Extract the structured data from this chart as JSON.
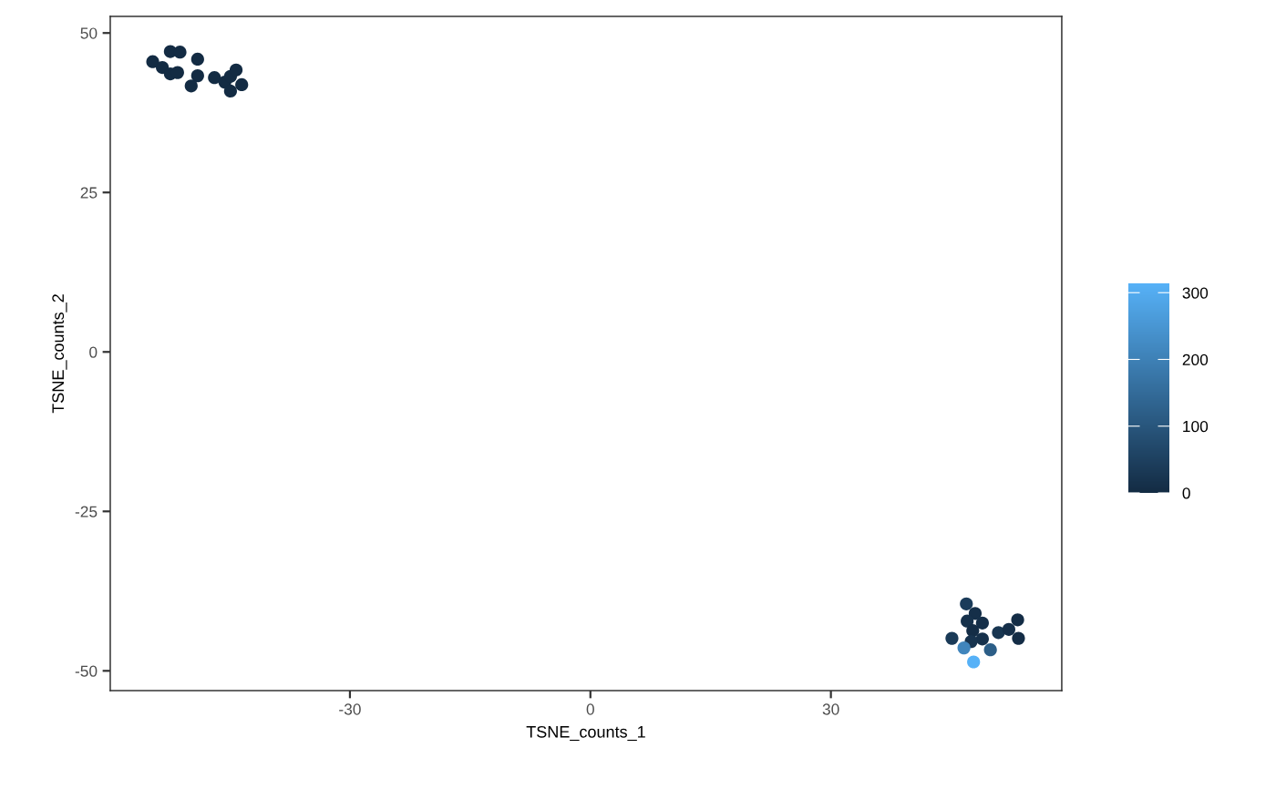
{
  "chart_data": {
    "type": "scatter",
    "xlabel": "TSNE_counts_1",
    "ylabel": "TSNE_counts_2",
    "x": [
      -54.6,
      -53.4,
      -52.4,
      -51.2,
      -52.4,
      -51.5,
      -49.0,
      -49.0,
      -49.8,
      -46.9,
      -45.6,
      -44.9,
      -44.2,
      -44.9,
      -43.5,
      46.9,
      48.0,
      47.0,
      48.9,
      47.7,
      50.9,
      52.2,
      53.3,
      53.4,
      45.1,
      48.9,
      47.5,
      46.6,
      49.9,
      47.8
    ],
    "values": [
      45.5,
      44.6,
      47.1,
      47.0,
      43.6,
      43.8,
      45.9,
      43.3,
      41.7,
      43.0,
      42.3,
      43.2,
      44.2,
      40.9,
      41.9,
      -39.5,
      -41.0,
      -42.2,
      -42.5,
      -43.7,
      -44.0,
      -43.5,
      -42.0,
      -44.9,
      -44.9,
      -45.0,
      -45.4,
      -46.4,
      -46.7,
      -48.6
    ],
    "cvalues": [
      0,
      0,
      0,
      0,
      0,
      0,
      0,
      0,
      0,
      0,
      0,
      0,
      0,
      0,
      0,
      40,
      10,
      15,
      10,
      5,
      25,
      10,
      5,
      5,
      35,
      15,
      20,
      210,
      120,
      314
    ],
    "clim": [
      0,
      314
    ],
    "cticks": [
      0,
      100,
      200,
      300
    ],
    "xlim": [
      -59.9,
      58.8
    ],
    "ylim": [
      -53.1,
      52.6
    ],
    "xticks": [
      -30,
      0,
      30
    ],
    "yticks": [
      -50,
      -25,
      0,
      25,
      50
    ],
    "marker": "circle",
    "grid": false,
    "legend": false
  }
}
